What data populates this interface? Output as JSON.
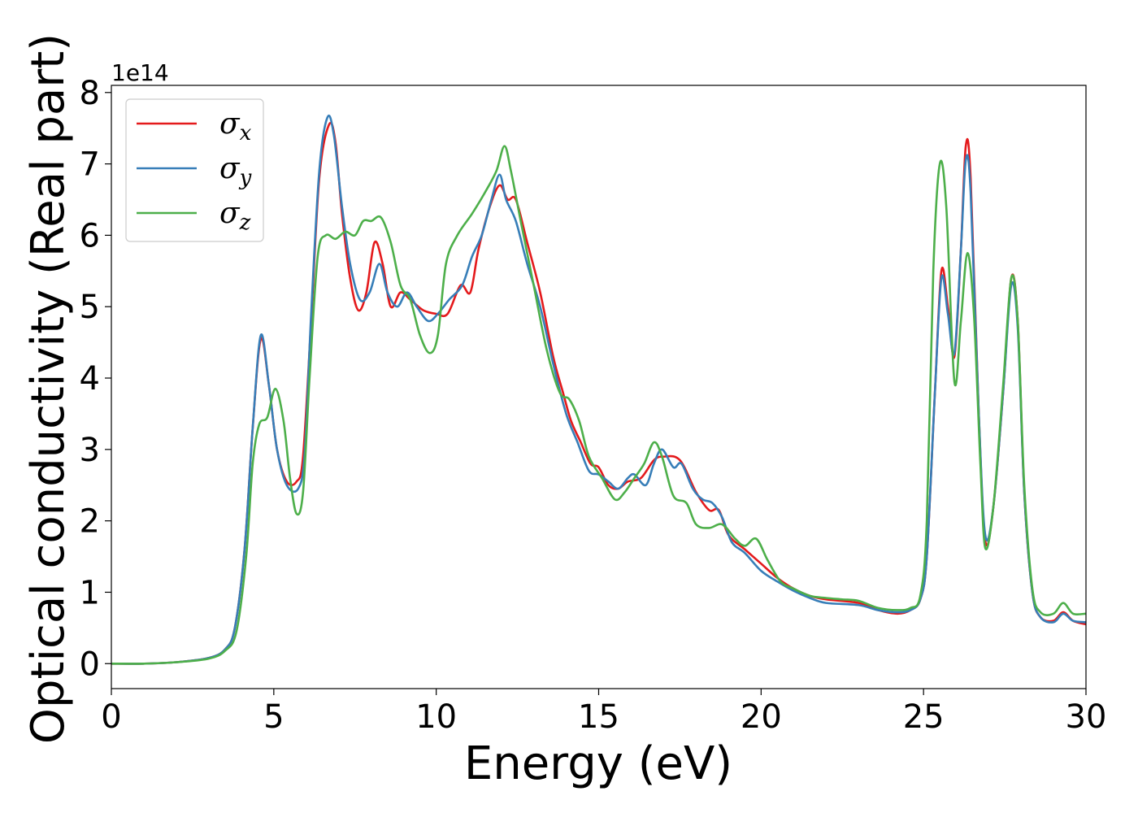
{
  "chart_data": {
    "type": "line",
    "title": "",
    "xlabel": "Energy (eV)",
    "ylabel": "Optical conductivity (Real part)",
    "y_offset_label": "1e14",
    "xlim": [
      0,
      30
    ],
    "ylim": [
      -0.35,
      8.1
    ],
    "x_ticks": [
      0,
      5,
      10,
      15,
      20,
      25,
      30
    ],
    "x_tick_labels": [
      "0",
      "5",
      "10",
      "15",
      "20",
      "25",
      "30"
    ],
    "y_ticks": [
      0,
      1,
      2,
      3,
      4,
      5,
      6,
      7,
      8
    ],
    "y_tick_labels": [
      "0",
      "1",
      "2",
      "3",
      "4",
      "5",
      "6",
      "7",
      "8"
    ],
    "grid": false,
    "legend_position": "top-left",
    "series": [
      {
        "name": "σx",
        "label_base": "σ",
        "label_sub": "x",
        "color": "#e41a1c",
        "points": [
          [
            0,
            0
          ],
          [
            1,
            0
          ],
          [
            2,
            0.02
          ],
          [
            3,
            0.08
          ],
          [
            3.5,
            0.2
          ],
          [
            3.8,
            0.5
          ],
          [
            4.1,
            1.6
          ],
          [
            4.35,
            3.3
          ],
          [
            4.6,
            4.55
          ],
          [
            4.85,
            3.9
          ],
          [
            5.1,
            3.0
          ],
          [
            5.4,
            2.55
          ],
          [
            5.7,
            2.55
          ],
          [
            5.9,
            2.9
          ],
          [
            6.15,
            4.8
          ],
          [
            6.4,
            6.8
          ],
          [
            6.7,
            7.55
          ],
          [
            6.9,
            7.3
          ],
          [
            7.1,
            6.3
          ],
          [
            7.35,
            5.4
          ],
          [
            7.6,
            4.95
          ],
          [
            7.85,
            5.2
          ],
          [
            8.1,
            5.9
          ],
          [
            8.35,
            5.6
          ],
          [
            8.6,
            5.0
          ],
          [
            8.9,
            5.2
          ],
          [
            9.2,
            5.1
          ],
          [
            9.6,
            4.95
          ],
          [
            10.0,
            4.9
          ],
          [
            10.35,
            4.9
          ],
          [
            10.75,
            5.3
          ],
          [
            11.05,
            5.2
          ],
          [
            11.3,
            5.8
          ],
          [
            11.65,
            6.4
          ],
          [
            11.95,
            6.7
          ],
          [
            12.2,
            6.5
          ],
          [
            12.45,
            6.5
          ],
          [
            12.8,
            5.9
          ],
          [
            13.2,
            5.2
          ],
          [
            13.6,
            4.3
          ],
          [
            13.9,
            3.8
          ],
          [
            14.15,
            3.4
          ],
          [
            14.45,
            3.1
          ],
          [
            14.75,
            2.8
          ],
          [
            15.0,
            2.75
          ],
          [
            15.3,
            2.5
          ],
          [
            15.6,
            2.45
          ],
          [
            15.9,
            2.55
          ],
          [
            16.3,
            2.6
          ],
          [
            16.7,
            2.85
          ],
          [
            17.0,
            2.9
          ],
          [
            17.5,
            2.85
          ],
          [
            18.0,
            2.4
          ],
          [
            18.4,
            2.15
          ],
          [
            18.7,
            2.15
          ],
          [
            19.0,
            1.8
          ],
          [
            19.5,
            1.6
          ],
          [
            20.0,
            1.4
          ],
          [
            20.5,
            1.2
          ],
          [
            21.0,
            1.05
          ],
          [
            21.5,
            0.95
          ],
          [
            22.0,
            0.9
          ],
          [
            23.0,
            0.85
          ],
          [
            23.6,
            0.75
          ],
          [
            24.2,
            0.7
          ],
          [
            24.6,
            0.75
          ],
          [
            24.9,
            0.9
          ],
          [
            25.1,
            1.5
          ],
          [
            25.35,
            3.8
          ],
          [
            25.55,
            5.5
          ],
          [
            25.75,
            5.0
          ],
          [
            25.95,
            4.3
          ],
          [
            26.15,
            5.8
          ],
          [
            26.3,
            7.25
          ],
          [
            26.45,
            6.8
          ],
          [
            26.7,
            3.5
          ],
          [
            26.9,
            1.72
          ],
          [
            27.15,
            2.2
          ],
          [
            27.45,
            3.8
          ],
          [
            27.7,
            5.4
          ],
          [
            27.9,
            4.8
          ],
          [
            28.1,
            2.4
          ],
          [
            28.35,
            1.0
          ],
          [
            28.6,
            0.65
          ],
          [
            29.0,
            0.6
          ],
          [
            29.3,
            0.72
          ],
          [
            29.6,
            0.6
          ],
          [
            30.0,
            0.55
          ]
        ]
      },
      {
        "name": "σy",
        "label_base": "σ",
        "label_sub": "y",
        "color": "#377eb8",
        "points": [
          [
            0,
            0
          ],
          [
            1,
            0
          ],
          [
            2,
            0.02
          ],
          [
            3,
            0.08
          ],
          [
            3.5,
            0.2
          ],
          [
            3.8,
            0.5
          ],
          [
            4.1,
            1.6
          ],
          [
            4.35,
            3.3
          ],
          [
            4.6,
            4.6
          ],
          [
            4.85,
            3.9
          ],
          [
            5.1,
            3.0
          ],
          [
            5.4,
            2.5
          ],
          [
            5.75,
            2.45
          ],
          [
            5.95,
            2.95
          ],
          [
            6.15,
            4.9
          ],
          [
            6.4,
            6.9
          ],
          [
            6.65,
            7.65
          ],
          [
            6.85,
            7.4
          ],
          [
            7.1,
            6.4
          ],
          [
            7.35,
            5.6
          ],
          [
            7.65,
            5.1
          ],
          [
            7.95,
            5.2
          ],
          [
            8.25,
            5.6
          ],
          [
            8.5,
            5.2
          ],
          [
            8.8,
            5.0
          ],
          [
            9.1,
            5.2
          ],
          [
            9.4,
            5.0
          ],
          [
            9.75,
            4.8
          ],
          [
            10.05,
            4.9
          ],
          [
            10.4,
            5.1
          ],
          [
            10.8,
            5.3
          ],
          [
            11.1,
            5.7
          ],
          [
            11.4,
            6.0
          ],
          [
            11.7,
            6.5
          ],
          [
            11.95,
            6.85
          ],
          [
            12.15,
            6.5
          ],
          [
            12.45,
            6.2
          ],
          [
            12.8,
            5.6
          ],
          [
            13.2,
            5.0
          ],
          [
            13.6,
            4.2
          ],
          [
            14.0,
            3.5
          ],
          [
            14.35,
            3.1
          ],
          [
            14.7,
            2.7
          ],
          [
            15.0,
            2.65
          ],
          [
            15.3,
            2.55
          ],
          [
            15.6,
            2.45
          ],
          [
            15.9,
            2.6
          ],
          [
            16.1,
            2.65
          ],
          [
            16.45,
            2.5
          ],
          [
            16.7,
            2.8
          ],
          [
            16.95,
            3.0
          ],
          [
            17.3,
            2.75
          ],
          [
            17.55,
            2.8
          ],
          [
            17.9,
            2.45
          ],
          [
            18.2,
            2.3
          ],
          [
            18.5,
            2.25
          ],
          [
            18.8,
            2.05
          ],
          [
            19.1,
            1.7
          ],
          [
            19.5,
            1.55
          ],
          [
            20.0,
            1.3
          ],
          [
            20.5,
            1.15
          ],
          [
            21.0,
            1.02
          ],
          [
            21.5,
            0.92
          ],
          [
            22.0,
            0.85
          ],
          [
            23.0,
            0.82
          ],
          [
            23.6,
            0.75
          ],
          [
            24.2,
            0.72
          ],
          [
            24.6,
            0.75
          ],
          [
            24.9,
            0.9
          ],
          [
            25.1,
            1.5
          ],
          [
            25.35,
            3.8
          ],
          [
            25.55,
            5.4
          ],
          [
            25.75,
            4.9
          ],
          [
            25.95,
            4.35
          ],
          [
            26.15,
            5.8
          ],
          [
            26.3,
            7.05
          ],
          [
            26.45,
            6.6
          ],
          [
            26.7,
            3.5
          ],
          [
            26.9,
            1.8
          ],
          [
            27.15,
            2.2
          ],
          [
            27.45,
            3.8
          ],
          [
            27.7,
            5.3
          ],
          [
            27.9,
            4.7
          ],
          [
            28.1,
            2.4
          ],
          [
            28.35,
            1.0
          ],
          [
            28.6,
            0.65
          ],
          [
            29.0,
            0.58
          ],
          [
            29.3,
            0.7
          ],
          [
            29.6,
            0.6
          ],
          [
            30.0,
            0.58
          ]
        ]
      },
      {
        "name": "σz",
        "label_base": "σ",
        "label_sub": "z",
        "color": "#4daf4a",
        "points": [
          [
            0,
            0
          ],
          [
            1,
            0
          ],
          [
            2,
            0.02
          ],
          [
            3,
            0.07
          ],
          [
            3.5,
            0.18
          ],
          [
            3.85,
            0.45
          ],
          [
            4.15,
            1.5
          ],
          [
            4.35,
            2.8
          ],
          [
            4.55,
            3.35
          ],
          [
            4.8,
            3.45
          ],
          [
            5.05,
            3.85
          ],
          [
            5.3,
            3.4
          ],
          [
            5.5,
            2.6
          ],
          [
            5.7,
            2.1
          ],
          [
            5.9,
            2.4
          ],
          [
            6.1,
            4.0
          ],
          [
            6.35,
            5.7
          ],
          [
            6.6,
            6.0
          ],
          [
            6.9,
            5.95
          ],
          [
            7.2,
            6.05
          ],
          [
            7.5,
            6.0
          ],
          [
            7.75,
            6.2
          ],
          [
            8.0,
            6.2
          ],
          [
            8.3,
            6.25
          ],
          [
            8.6,
            5.9
          ],
          [
            8.9,
            5.3
          ],
          [
            9.2,
            5.1
          ],
          [
            9.5,
            4.6
          ],
          [
            9.8,
            4.35
          ],
          [
            10.05,
            4.6
          ],
          [
            10.3,
            5.6
          ],
          [
            10.65,
            6.0
          ],
          [
            11.1,
            6.3
          ],
          [
            11.5,
            6.6
          ],
          [
            11.85,
            6.9
          ],
          [
            12.1,
            7.25
          ],
          [
            12.3,
            6.9
          ],
          [
            12.6,
            6.2
          ],
          [
            13.0,
            5.3
          ],
          [
            13.4,
            4.4
          ],
          [
            13.8,
            3.8
          ],
          [
            14.1,
            3.7
          ],
          [
            14.4,
            3.4
          ],
          [
            14.7,
            2.9
          ],
          [
            15.1,
            2.6
          ],
          [
            15.5,
            2.3
          ],
          [
            15.8,
            2.4
          ],
          [
            16.1,
            2.6
          ],
          [
            16.4,
            2.8
          ],
          [
            16.7,
            3.1
          ],
          [
            16.95,
            2.9
          ],
          [
            17.3,
            2.35
          ],
          [
            17.7,
            2.25
          ],
          [
            18.0,
            1.95
          ],
          [
            18.4,
            1.9
          ],
          [
            18.8,
            1.95
          ],
          [
            19.2,
            1.75
          ],
          [
            19.5,
            1.65
          ],
          [
            19.85,
            1.75
          ],
          [
            20.2,
            1.45
          ],
          [
            20.6,
            1.15
          ],
          [
            21.0,
            1.05
          ],
          [
            21.5,
            0.95
          ],
          [
            22.0,
            0.92
          ],
          [
            22.5,
            0.9
          ],
          [
            23.0,
            0.88
          ],
          [
            23.6,
            0.78
          ],
          [
            24.2,
            0.75
          ],
          [
            24.6,
            0.78
          ],
          [
            24.9,
            0.95
          ],
          [
            25.1,
            2.0
          ],
          [
            25.3,
            5.5
          ],
          [
            25.5,
            7.0
          ],
          [
            25.7,
            6.4
          ],
          [
            25.95,
            3.95
          ],
          [
            26.15,
            4.8
          ],
          [
            26.35,
            5.75
          ],
          [
            26.55,
            4.9
          ],
          [
            26.75,
            2.8
          ],
          [
            26.9,
            1.62
          ],
          [
            27.15,
            2.2
          ],
          [
            27.45,
            3.9
          ],
          [
            27.7,
            5.4
          ],
          [
            27.9,
            4.8
          ],
          [
            28.1,
            2.5
          ],
          [
            28.35,
            1.05
          ],
          [
            28.6,
            0.72
          ],
          [
            29.0,
            0.7
          ],
          [
            29.3,
            0.85
          ],
          [
            29.6,
            0.7
          ],
          [
            30.0,
            0.7
          ]
        ]
      }
    ]
  }
}
